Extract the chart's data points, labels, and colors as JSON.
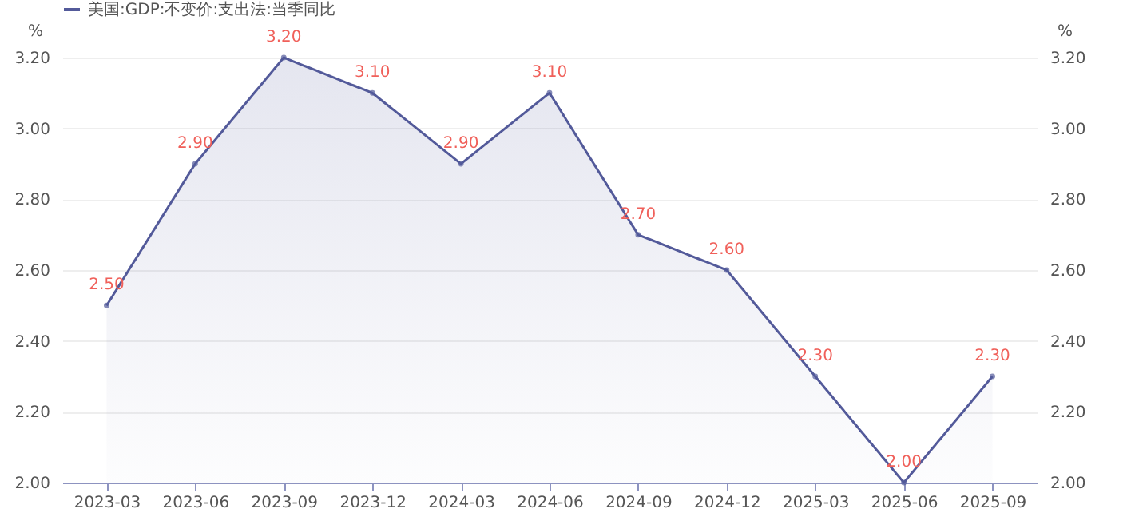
{
  "chart_data": {
    "type": "area",
    "categories": [
      "2023-03",
      "2023-06",
      "2023-09",
      "2023-12",
      "2024-03",
      "2024-06",
      "2024-09",
      "2024-12",
      "2025-03",
      "2025-06",
      "2025-09"
    ],
    "series": [
      {
        "name": "美国:GDP:不变价:支出法:当季同比",
        "color": "#535a9a",
        "values": [
          2.5,
          2.9,
          3.2,
          3.1,
          2.9,
          3.1,
          2.7,
          2.6,
          2.3,
          2.0,
          2.3
        ],
        "value_labels": [
          "2.50",
          "2.90",
          "3.20",
          "3.10",
          "2.90",
          "3.10",
          "2.70",
          "2.60",
          "2.30",
          "2.00",
          "2.30"
        ]
      }
    ],
    "ylabel": "%",
    "y2label": "%",
    "ylim": [
      2,
      3.2
    ],
    "yticks": [
      {
        "value": 2,
        "label": "2.00"
      },
      {
        "value": 2.2,
        "label": "2.20"
      },
      {
        "value": 2.4,
        "label": "2.40"
      },
      {
        "value": 2.6,
        "label": "2.60"
      },
      {
        "value": 2.8,
        "label": "2.80"
      },
      {
        "value": 3,
        "label": "3.00"
      },
      {
        "value": 3.2,
        "label": "3.20"
      }
    ],
    "y2lim": [
      2,
      3.2
    ],
    "y2ticks": [
      {
        "value": 2,
        "label": "2.00"
      },
      {
        "value": 2.2,
        "label": "2.20"
      },
      {
        "value": 2.4,
        "label": "2.40"
      },
      {
        "value": 2.6,
        "label": "2.60"
      },
      {
        "value": 2.8,
        "label": "2.80"
      },
      {
        "value": 3,
        "label": "3.00"
      },
      {
        "value": 3.2,
        "label": "3.20"
      }
    ],
    "grid": "y",
    "legend": "top left",
    "marker": "circle",
    "line_style": "solid"
  }
}
